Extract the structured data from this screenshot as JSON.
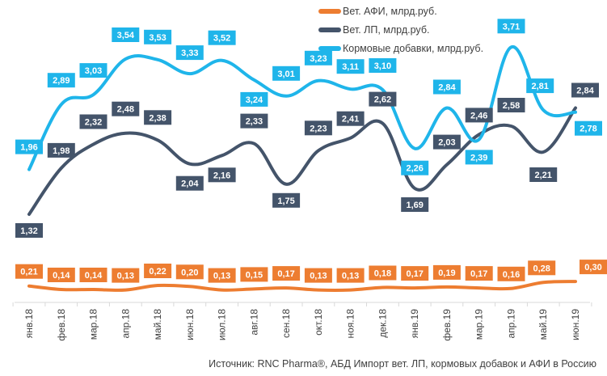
{
  "chart_data": {
    "type": "line",
    "categories": [
      "янв.18",
      "фев.18",
      "мар.18",
      "апр.18",
      "май.18",
      "июн.18",
      "июл.18",
      "авг.18",
      "сен.18",
      "окт.18",
      "ноя.18",
      "дек.18",
      "янв.19",
      "фев.19",
      "мар.19",
      "апр.19",
      "май.19",
      "июн.19"
    ],
    "series": [
      {
        "name": "Вет. АФИ, млрд.руб.",
        "color": "#ED7D31",
        "values": [
          0.21,
          0.14,
          0.14,
          0.13,
          0.22,
          0.2,
          0.13,
          0.15,
          0.17,
          0.13,
          0.13,
          0.18,
          0.17,
          0.19,
          0.17,
          0.16,
          0.28,
          0.3
        ],
        "labels": [
          "0,21",
          "0,14",
          "0,14",
          "0,13",
          "0,22",
          "0,20",
          "0,13",
          "0,15",
          "0,17",
          "0,13",
          "0,13",
          "0,18",
          "0,17",
          "0,19",
          "0,17",
          "0,16",
          "0,28",
          "0,30"
        ]
      },
      {
        "name": "Вет. ЛП, млрд.руб.",
        "color": "#44546A",
        "values": [
          1.32,
          1.98,
          2.32,
          2.48,
          2.38,
          2.04,
          2.16,
          2.33,
          1.75,
          2.23,
          2.41,
          2.62,
          1.69,
          2.03,
          2.46,
          2.58,
          2.21,
          2.84
        ],
        "labels": [
          "1,32",
          "1,98",
          "2,32",
          "2,48",
          "2,38",
          "2,04",
          "2,16",
          "2,33",
          "1,75",
          "2,23",
          "2,41",
          "2,62",
          "1,69",
          "2,03",
          "2,46",
          "2,58",
          "2,21",
          "2,84"
        ]
      },
      {
        "name": "Кормовые добавки, млрд.руб.",
        "color": "#1FB5EA",
        "values": [
          1.96,
          2.89,
          3.03,
          3.54,
          3.53,
          3.33,
          3.52,
          3.24,
          3.01,
          3.23,
          3.11,
          3.1,
          2.26,
          2.84,
          2.39,
          3.71,
          2.81,
          2.78
        ],
        "labels": [
          "1,96",
          "2,89",
          "3,03",
          "3,54",
          "3,53",
          "3,33",
          "3,52",
          "3,24",
          "3,01",
          "3,23",
          "3,11",
          "3,10",
          "2,26",
          "2,84",
          "2,39",
          "3,71",
          "2,81",
          "2,78"
        ]
      }
    ],
    "legend_position": "top-right",
    "grid": false,
    "source": "Источник: RNC Pharma®, АБД Импорт вет. ЛП, кормовых добавок и АФИ в Россию"
  }
}
